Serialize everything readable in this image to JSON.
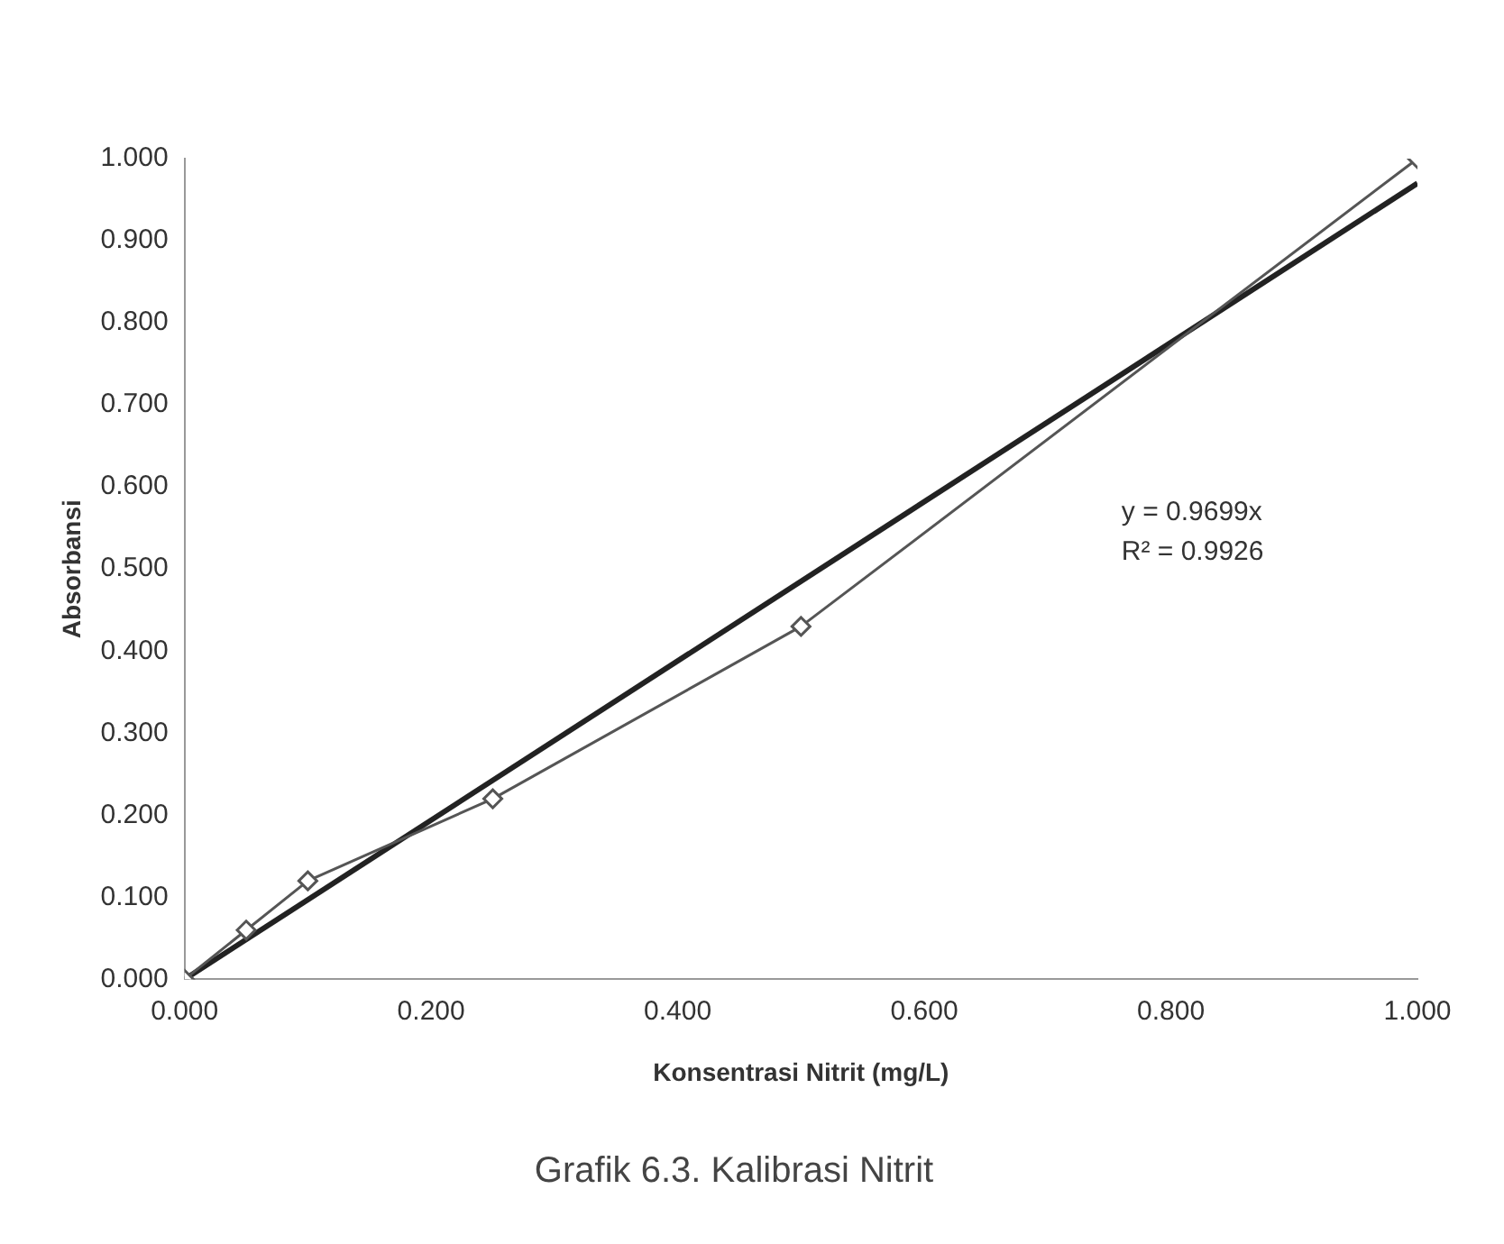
{
  "chart_data": {
    "type": "line",
    "title": "Grafik 6.3. Kalibrasi Nitrit",
    "xlabel": "Konsentrasi Nitrit (mg/L)",
    "ylabel": "Absorbansi",
    "series": [
      {
        "color": "#555555",
        "marker": "diamond",
        "x": [
          0,
          0.05,
          0.1,
          0.25,
          0.5,
          1.0
        ],
        "values": [
          0,
          0.06,
          0.12,
          0.22,
          0.43,
          1.0
        ]
      },
      {
        "color": "#222222",
        "marker": "none",
        "x": [
          0,
          1.0
        ],
        "values": [
          0,
          0.97
        ]
      }
    ],
    "xlim": [
      0,
      1
    ],
    "ylim": [
      0,
      1
    ],
    "xticks": [
      {
        "value": 0,
        "label": "0.000"
      },
      {
        "value": 0.2,
        "label": "0.200"
      },
      {
        "value": 0.4,
        "label": "0.400"
      },
      {
        "value": 0.6,
        "label": "0.600"
      },
      {
        "value": 0.8,
        "label": "0.800"
      },
      {
        "value": 1,
        "label": "1.000"
      }
    ],
    "yticks": [
      {
        "value": 0,
        "label": "0.000"
      },
      {
        "value": 0.1,
        "label": "0.100"
      },
      {
        "value": 0.2,
        "label": "0.200"
      },
      {
        "value": 0.3,
        "label": "0.300"
      },
      {
        "value": 0.4,
        "label": "0.400"
      },
      {
        "value": 0.5,
        "label": "0.500"
      },
      {
        "value": 0.6,
        "label": "0.600"
      },
      {
        "value": 0.7,
        "label": "0.700"
      },
      {
        "value": 0.8,
        "label": "0.800"
      },
      {
        "value": 0.9,
        "label": "0.900"
      },
      {
        "value": 1,
        "label": "1.000"
      }
    ],
    "annotations": [
      "y = 0.9699x",
      "R² = 0.9926"
    ],
    "grid": false,
    "legend": false
  }
}
